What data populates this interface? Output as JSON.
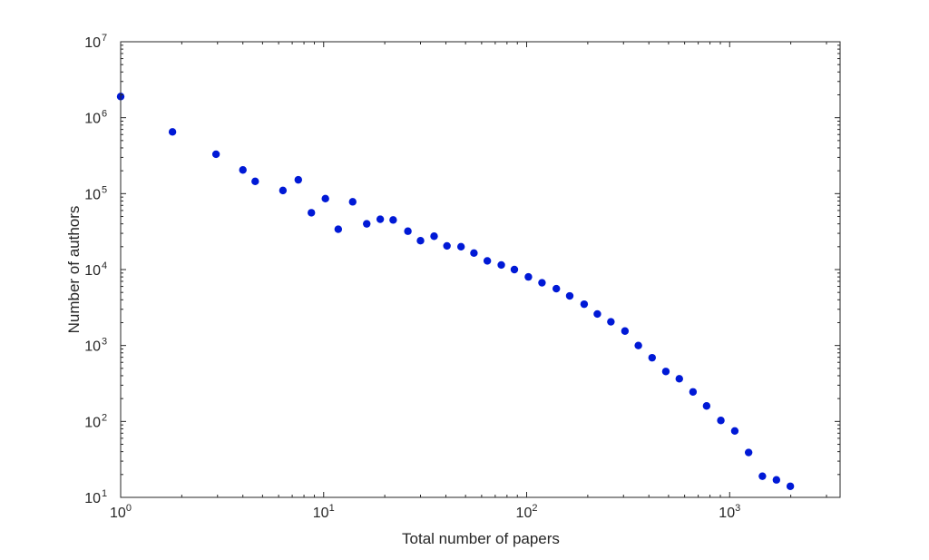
{
  "chart_data": {
    "type": "scatter",
    "title": "",
    "xlabel": "Total number of papers",
    "ylabel": "Number of authors",
    "xscale": "log",
    "yscale": "log",
    "xlim": [
      1,
      3500
    ],
    "ylim": [
      10,
      10000000
    ],
    "grid": false,
    "legend": "none",
    "marker_color": "#0019d6",
    "x_ticks": [
      {
        "base": "10",
        "exp": "0"
      },
      {
        "base": "10",
        "exp": "1"
      },
      {
        "base": "10",
        "exp": "2"
      },
      {
        "base": "10",
        "exp": "3"
      }
    ],
    "y_ticks": [
      {
        "base": "10",
        "exp": "1"
      },
      {
        "base": "10",
        "exp": "2"
      },
      {
        "base": "10",
        "exp": "3"
      },
      {
        "base": "10",
        "exp": "4"
      },
      {
        "base": "10",
        "exp": "5"
      },
      {
        "base": "10",
        "exp": "6"
      },
      {
        "base": "10",
        "exp": "7"
      }
    ],
    "series": [
      {
        "points": [
          [
            1,
            1900000
          ],
          [
            1.8,
            650000
          ],
          [
            2.95,
            330000
          ],
          [
            4.0,
            205000
          ],
          [
            4.6,
            145000
          ],
          [
            6.3,
            110000
          ],
          [
            7.5,
            152000
          ],
          [
            8.7,
            56000
          ],
          [
            10.2,
            86000
          ],
          [
            11.8,
            34000
          ],
          [
            13.9,
            78000
          ],
          [
            16.3,
            40000
          ],
          [
            19.0,
            46000
          ],
          [
            22.0,
            45000
          ],
          [
            26.0,
            32000
          ],
          [
            30.0,
            24000
          ],
          [
            35.0,
            27500
          ],
          [
            40.5,
            20500
          ],
          [
            47.5,
            20000
          ],
          [
            55.0,
            16500
          ],
          [
            64.0,
            13000
          ],
          [
            75.0,
            11500
          ],
          [
            87.0,
            10000
          ],
          [
            102,
            8000
          ],
          [
            119,
            6700
          ],
          [
            140,
            5600
          ],
          [
            163,
            4500
          ],
          [
            192,
            3500
          ],
          [
            223,
            2600
          ],
          [
            260,
            2050
          ],
          [
            305,
            1550
          ],
          [
            355,
            1000
          ],
          [
            415,
            690
          ],
          [
            485,
            455
          ],
          [
            565,
            365
          ],
          [
            660,
            245
          ],
          [
            770,
            160
          ],
          [
            905,
            103
          ],
          [
            1060,
            75
          ],
          [
            1240,
            39
          ],
          [
            1450,
            19
          ],
          [
            1700,
            17
          ],
          [
            1990,
            14
          ]
        ]
      }
    ]
  }
}
